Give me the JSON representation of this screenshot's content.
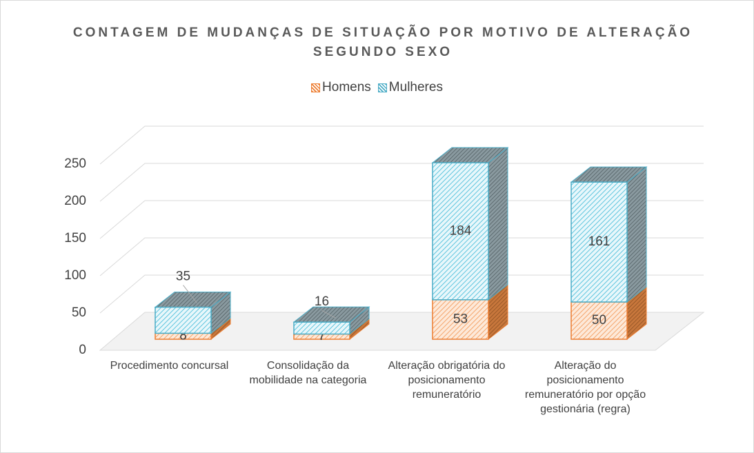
{
  "chart_data": {
    "type": "bar3d_stacked",
    "title": "CONTAGEM DE MUDANÇAS DE SITUAÇÃO POR MOTIVO DE ALTERAÇÃO SEGUNDO SEXO",
    "categories": [
      "Procedimento concursal",
      "Consolidação da mobilidade na categoria",
      "Alteração obrigatória do posicionamento remuneratório",
      "Alteração do posicionamento remuneratório por opção gestionária (regra)"
    ],
    "series": [
      {
        "name": "Homens",
        "color": "#ed7d31",
        "values": [
          8,
          7,
          53,
          50
        ]
      },
      {
        "name": "Mulheres",
        "color": "#4bacc6",
        "values": [
          35,
          16,
          184,
          161
        ]
      }
    ],
    "ylim": [
      0,
      250
    ],
    "yticks": [
      0,
      50,
      100,
      150,
      200,
      250
    ],
    "grid": true,
    "legend": "top"
  }
}
